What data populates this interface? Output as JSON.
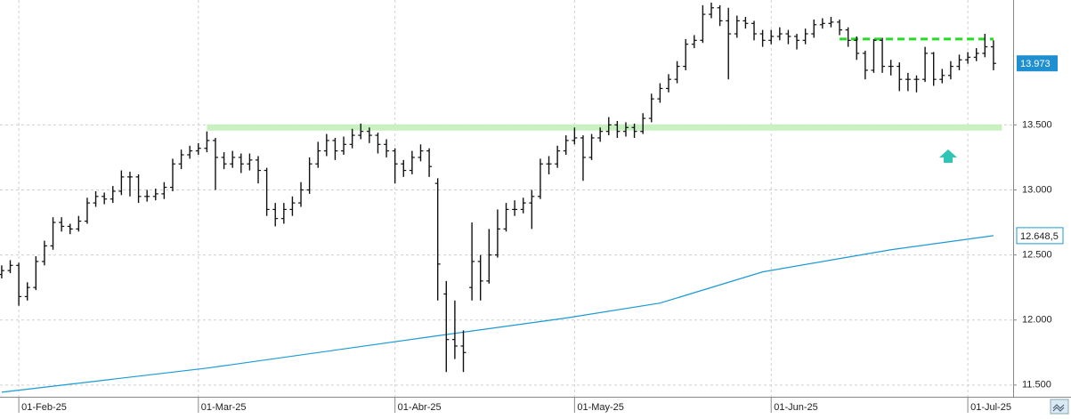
{
  "chart_data": {
    "type": "ohlc",
    "xlim": [
      -0.2,
      118.3
    ],
    "ylim": [
      11410,
      14460
    ],
    "grid": true,
    "yticks": [
      {
        "value": 11500,
        "label": "11.500"
      },
      {
        "value": 12000,
        "label": "12.000"
      },
      {
        "value": 12500,
        "label": "12.500"
      },
      {
        "value": 13000,
        "label": "13.000"
      },
      {
        "value": 13500,
        "label": "13.500"
      }
    ],
    "xticks": [
      {
        "value": 2,
        "label": "01-Feb-25"
      },
      {
        "value": 23,
        "label": "01-Mar-25"
      },
      {
        "value": 46,
        "label": "01-Abr-25"
      },
      {
        "value": 67,
        "label": "01-May-25"
      },
      {
        "value": 90,
        "label": "01-Jun-25"
      },
      {
        "value": 113,
        "label": "01-Jul-25"
      }
    ],
    "color": "#111111",
    "last_label": "13.973",
    "last_label_color": "#1e8fd0",
    "ohlc": [
      [
        12350,
        12420,
        12320,
        12380
      ],
      [
        12380,
        12460,
        12360,
        12420
      ],
      [
        12420,
        12440,
        12110,
        12180
      ],
      [
        12180,
        12290,
        12150,
        12250
      ],
      [
        12250,
        12490,
        12230,
        12450
      ],
      [
        12450,
        12610,
        12420,
        12570
      ],
      [
        12570,
        12790,
        12540,
        12750
      ],
      [
        12750,
        12790,
        12680,
        12720
      ],
      [
        12720,
        12740,
        12660,
        12700
      ],
      [
        12700,
        12800,
        12680,
        12760
      ],
      [
        12760,
        12940,
        12740,
        12900
      ],
      [
        12900,
        12990,
        12870,
        12950
      ],
      [
        12950,
        12980,
        12890,
        12930
      ],
      [
        12930,
        13030,
        12900,
        12990
      ],
      [
        12990,
        13150,
        12960,
        13100
      ],
      [
        13100,
        13140,
        12950,
        13100
      ],
      [
        13100,
        13120,
        12900,
        12950
      ],
      [
        12950,
        13000,
        12910,
        12950
      ],
      [
        12950,
        13010,
        12920,
        12970
      ],
      [
        12970,
        13060,
        12930,
        13020
      ],
      [
        13020,
        13240,
        12990,
        13200
      ],
      [
        13200,
        13310,
        13160,
        13270
      ],
      [
        13270,
        13340,
        13240,
        13300
      ],
      [
        13300,
        13360,
        13270,
        13320
      ],
      [
        13320,
        13450,
        13290,
        13380
      ],
      [
        13380,
        13400,
        13000,
        13250
      ],
      [
        13250,
        13290,
        13160,
        13200
      ],
      [
        13200,
        13300,
        13170,
        13250
      ],
      [
        13250,
        13280,
        13130,
        13200
      ],
      [
        13200,
        13280,
        13150,
        13230
      ],
      [
        13230,
        13260,
        13050,
        13150
      ],
      [
        13150,
        13170,
        12800,
        12850
      ],
      [
        12850,
        12900,
        12720,
        12780
      ],
      [
        12780,
        12900,
        12740,
        12850
      ],
      [
        12850,
        12950,
        12800,
        12900
      ],
      [
        12900,
        13060,
        12870,
        13000
      ],
      [
        13000,
        13250,
        12970,
        13200
      ],
      [
        13200,
        13370,
        13170,
        13300
      ],
      [
        13300,
        13430,
        13260,
        13380
      ],
      [
        13380,
        13400,
        13230,
        13300
      ],
      [
        13300,
        13410,
        13270,
        13350
      ],
      [
        13350,
        13470,
        13320,
        13420
      ],
      [
        13420,
        13510,
        13390,
        13450
      ],
      [
        13450,
        13480,
        13360,
        13420
      ],
      [
        13420,
        13440,
        13280,
        13350
      ],
      [
        13350,
        13390,
        13250,
        13300
      ],
      [
        13300,
        13320,
        13050,
        13200
      ],
      [
        13200,
        13230,
        13100,
        13150
      ],
      [
        13150,
        13300,
        13120,
        13250
      ],
      [
        13250,
        13350,
        13220,
        13300
      ],
      [
        13300,
        13320,
        13100,
        13180
      ],
      [
        13050,
        13090,
        12150,
        12430
      ],
      [
        12200,
        12300,
        11600,
        11850
      ],
      [
        11850,
        12150,
        11700,
        11800
      ],
      [
        11800,
        11920,
        11600,
        11750
      ],
      [
        12250,
        12750,
        12150,
        12450
      ],
      [
        12450,
        12500,
        12150,
        12300
      ],
      [
        12300,
        12700,
        12280,
        12500
      ],
      [
        12500,
        12850,
        12480,
        12700
      ],
      [
        12700,
        12900,
        12680,
        12850
      ],
      [
        12850,
        12920,
        12800,
        12850
      ],
      [
        12850,
        12940,
        12820,
        12900
      ],
      [
        12900,
        13000,
        12700,
        12950
      ],
      [
        12950,
        13240,
        12930,
        13200
      ],
      [
        13200,
        13260,
        13120,
        13200
      ],
      [
        13200,
        13340,
        13170,
        13300
      ],
      [
        13300,
        13420,
        13270,
        13380
      ],
      [
        13380,
        13480,
        13350,
        13400
      ],
      [
        13400,
        13420,
        13070,
        13250
      ],
      [
        13250,
        13430,
        13230,
        13400
      ],
      [
        13400,
        13480,
        13370,
        13450
      ],
      [
        13450,
        13560,
        13420,
        13500
      ],
      [
        13500,
        13530,
        13400,
        13450
      ],
      [
        13450,
        13520,
        13410,
        13480
      ],
      [
        13480,
        13510,
        13400,
        13450
      ],
      [
        13450,
        13590,
        13430,
        13550
      ],
      [
        13550,
        13740,
        13520,
        13700
      ],
      [
        13700,
        13820,
        13670,
        13780
      ],
      [
        13780,
        13890,
        13750,
        13850
      ],
      [
        13850,
        13990,
        13820,
        13950
      ],
      [
        13950,
        14160,
        13920,
        14120
      ],
      [
        14120,
        14190,
        14090,
        14150
      ],
      [
        14150,
        14420,
        14130,
        14350
      ],
      [
        14350,
        14440,
        14320,
        14400
      ],
      [
        14400,
        14420,
        14260,
        14300
      ],
      [
        14300,
        14400,
        13850,
        14200
      ],
      [
        14200,
        14340,
        14170,
        14300
      ],
      [
        14300,
        14330,
        14240,
        14280
      ],
      [
        14280,
        14300,
        14150,
        14200
      ],
      [
        14200,
        14230,
        14100,
        14150
      ],
      [
        14150,
        14230,
        14120,
        14180
      ],
      [
        14180,
        14250,
        14150,
        14200
      ],
      [
        14200,
        14230,
        14120,
        14180
      ],
      [
        14180,
        14200,
        14080,
        14150
      ],
      [
        14150,
        14240,
        14120,
        14200
      ],
      [
        14200,
        14310,
        14170,
        14270
      ],
      [
        14270,
        14320,
        14240,
        14280
      ],
      [
        14280,
        14330,
        14250,
        14290
      ],
      [
        14290,
        14310,
        14190,
        14230
      ],
      [
        14230,
        14250,
        14100,
        14150
      ],
      [
        14150,
        14180,
        14000,
        14050
      ],
      [
        14050,
        14070,
        13850,
        13920
      ],
      [
        13920,
        14160,
        13900,
        14150
      ],
      [
        14150,
        14170,
        13900,
        13950
      ],
      [
        13950,
        14000,
        13880,
        13950
      ],
      [
        13950,
        13980,
        13760,
        13850
      ],
      [
        13850,
        13900,
        13760,
        13850
      ],
      [
        13850,
        13880,
        13750,
        13850
      ],
      [
        13850,
        14100,
        13830,
        14050
      ],
      [
        14050,
        14060,
        13800,
        13850
      ],
      [
        13850,
        13930,
        13820,
        13880
      ],
      [
        13880,
        13990,
        13850,
        13950
      ],
      [
        13950,
        14040,
        13920,
        14000
      ],
      [
        14000,
        14060,
        13970,
        14020
      ],
      [
        14020,
        14090,
        13990,
        14050
      ],
      [
        14050,
        14200,
        14020,
        14100
      ],
      [
        14100,
        14150,
        13920,
        13973
      ]
    ],
    "moving_average": {
      "color": "#1a9ad6",
      "x": [
        0,
        24,
        50,
        66,
        77,
        89,
        104,
        116
      ],
      "values": [
        11445,
        11630,
        11870,
        12015,
        12130,
        12370,
        12540,
        12648.5
      ],
      "value_labels": [
        null,
        null,
        null,
        null,
        null,
        null,
        null,
        "12.648,5"
      ]
    },
    "levels": [
      {
        "value": 13480,
        "from": 24,
        "to": 117,
        "color": "#c8f0c0",
        "dashed": false
      },
      {
        "value": 14160,
        "from": 98,
        "to": 116,
        "color": "#22dd22",
        "dashed": true
      }
    ]
  }
}
